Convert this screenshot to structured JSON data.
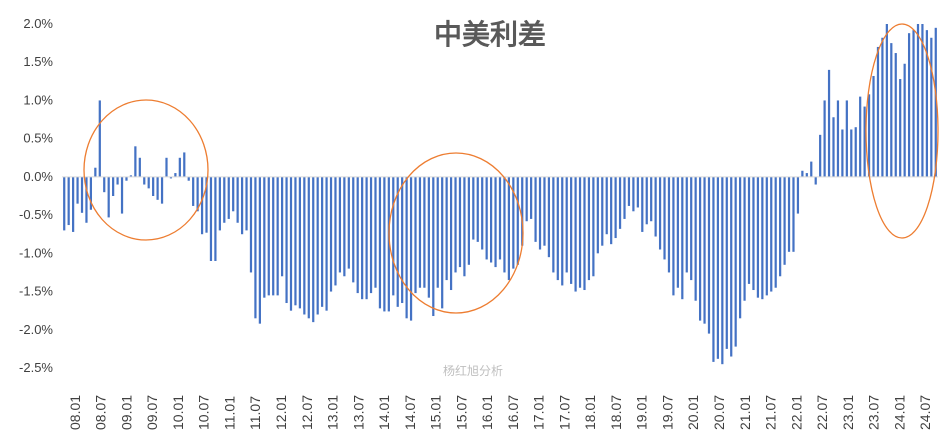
{
  "chart_data": {
    "type": "bar",
    "title": "中美利差",
    "watermark": "杨红旭分析",
    "y_ticks": [
      "2.0%",
      "1.5%",
      "1.0%",
      "0.5%",
      "0.0%",
      "-0.5%",
      "-1.0%",
      "-1.5%",
      "-2.0%",
      "-2.5%"
    ],
    "ylim": [
      -2.5,
      2.0
    ],
    "x_ticks": [
      "08.01",
      "08.07",
      "09.01",
      "09.07",
      "10.01",
      "10.07",
      "11.01",
      "11.07",
      "12.01",
      "12.07",
      "13.01",
      "13.07",
      "14.01",
      "14.07",
      "15.01",
      "15.07",
      "16.01",
      "16.07",
      "17.01",
      "17.07",
      "18.01",
      "18.07",
      "19.01",
      "19.07",
      "20.01",
      "20.07",
      "21.01",
      "21.07",
      "22.01",
      "22.07",
      "23.01",
      "23.07",
      "24.01",
      "24.07"
    ],
    "series": [
      {
        "unit": "%",
        "values": [
          -0.7,
          -0.63,
          -0.72,
          -0.35,
          -0.47,
          -0.6,
          -0.43,
          0.12,
          1.0,
          -0.2,
          -0.53,
          -0.25,
          -0.1,
          -0.48,
          -0.05,
          0.02,
          0.4,
          0.25,
          -0.1,
          -0.15,
          -0.25,
          -0.3,
          -0.35,
          0.25,
          -0.02,
          0.05,
          0.25,
          0.32,
          -0.05,
          -0.38,
          -0.45,
          -0.75,
          -0.73,
          -1.1,
          -1.1,
          -0.7,
          -0.6,
          -0.55,
          -0.45,
          -0.6,
          -0.75,
          -0.7,
          -1.25,
          -1.85,
          -1.92,
          -1.58,
          -1.55,
          -1.55,
          -1.55,
          -1.3,
          -1.65,
          -1.75,
          -1.68,
          -1.72,
          -1.8,
          -1.85,
          -1.9,
          -1.8,
          -1.7,
          -1.75,
          -1.5,
          -1.42,
          -1.25,
          -1.3,
          -1.2,
          -1.38,
          -1.52,
          -1.6,
          -1.6,
          -1.52,
          -1.45,
          -1.72,
          -1.76,
          -1.76,
          -1.55,
          -1.7,
          -1.65,
          -1.85,
          -1.88,
          -1.52,
          -1.45,
          -1.45,
          -1.58,
          -1.82,
          -1.45,
          -1.72,
          -1.35,
          -1.48,
          -1.25,
          -1.18,
          -1.3,
          -1.15,
          -0.82,
          -0.85,
          -0.95,
          -1.08,
          -1.12,
          -1.18,
          -1.08,
          -1.25,
          -1.35,
          -1.2,
          -1.15,
          -0.9,
          -0.58,
          -0.55,
          -0.85,
          -0.95,
          -0.9,
          -1.05,
          -1.25,
          -1.35,
          -1.42,
          -1.25,
          -1.4,
          -1.5,
          -1.45,
          -1.48,
          -1.35,
          -1.3,
          -1.0,
          -0.9,
          -0.75,
          -0.88,
          -0.8,
          -0.68,
          -0.55,
          -0.38,
          -0.45,
          -0.4,
          -0.72,
          -0.62,
          -0.58,
          -0.78,
          -0.95,
          -1.08,
          -1.25,
          -1.55,
          -1.45,
          -1.6,
          -1.25,
          -1.35,
          -1.62,
          -1.88,
          -1.92,
          -2.05,
          -2.42,
          -2.38,
          -2.45,
          -2.25,
          -2.35,
          -2.22,
          -1.85,
          -1.62,
          -1.4,
          -1.48,
          -1.58,
          -1.6,
          -1.55,
          -1.5,
          -1.45,
          -1.3,
          -1.15,
          -0.98,
          -0.98,
          -0.48,
          0.08,
          0.05,
          0.2,
          -0.1,
          0.55,
          1.0,
          1.4,
          0.78,
          1.0,
          0.62,
          1.0,
          0.62,
          0.65,
          1.05,
          0.92,
          1.08,
          1.32,
          1.7,
          1.82,
          2.0,
          1.75,
          1.62,
          1.28,
          1.48,
          1.88,
          1.92,
          2.0,
          2.0,
          1.92,
          1.82,
          1.95
        ]
      }
    ],
    "annotations": [
      "circle",
      "circle",
      "circle"
    ],
    "grid": false,
    "colors": {
      "bar": "#4472C4",
      "circle": "#ED7D31",
      "text": "#404040",
      "axis": "#d9d9d9"
    }
  }
}
